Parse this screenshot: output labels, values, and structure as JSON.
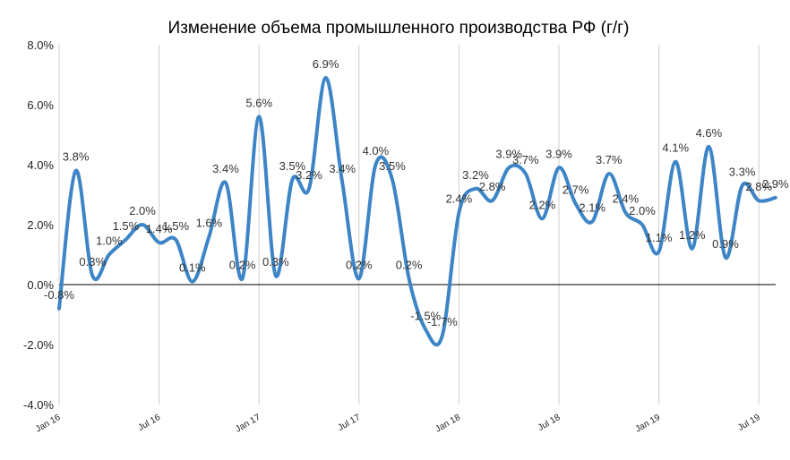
{
  "chart_data": {
    "type": "line",
    "title": "Изменение объема промышленного производства РФ (г/г)",
    "xlabel": "",
    "ylabel": "",
    "ylim": [
      -4,
      8
    ],
    "y_ticks": [
      "-4.0%",
      "-2.0%",
      "0.0%",
      "2.0%",
      "4.0%",
      "6.0%",
      "8.0%"
    ],
    "x_ticks": [
      "Jan 16",
      "Jul 16",
      "Jan 17",
      "Jul 17",
      "Jan 18",
      "Jul 18",
      "Jan 19",
      "Jul 19"
    ],
    "grid": {
      "vertical": true,
      "horizontal": false
    },
    "legend": "none",
    "colors": {
      "line": "#3d85c6",
      "grid": "#cccccc",
      "zero_line": "#000000"
    },
    "series": [
      {
        "x": [
          "2016-01",
          "2016-02",
          "2016-03",
          "2016-04",
          "2016-05",
          "2016-06",
          "2016-07",
          "2016-08",
          "2016-09",
          "2016-10",
          "2016-11",
          "2016-12",
          "2017-01",
          "2017-02",
          "2017-03",
          "2017-04",
          "2017-05",
          "2017-06",
          "2017-07",
          "2017-08",
          "2017-09",
          "2017-10",
          "2017-11",
          "2017-12",
          "2018-01",
          "2018-02",
          "2018-03",
          "2018-04",
          "2018-05",
          "2018-06",
          "2018-07",
          "2018-08",
          "2018-09",
          "2018-10",
          "2018-11",
          "2018-12",
          "2019-01",
          "2019-02",
          "2019-03",
          "2019-04",
          "2019-05",
          "2019-06",
          "2019-07",
          "2019-08"
        ],
        "values": [
          -0.8,
          3.8,
          0.3,
          1.0,
          1.5,
          2.0,
          1.4,
          1.5,
          0.1,
          1.6,
          3.4,
          0.2,
          5.6,
          0.3,
          3.5,
          3.2,
          6.9,
          3.4,
          0.2,
          4.0,
          3.5,
          0.2,
          -1.5,
          -1.7,
          2.4,
          3.2,
          2.8,
          3.9,
          3.7,
          2.2,
          3.9,
          2.7,
          2.1,
          3.7,
          2.4,
          2.0,
          1.1,
          4.1,
          1.2,
          4.6,
          0.9,
          3.3,
          2.8,
          2.9
        ],
        "labels": [
          "-0.8%",
          "3.8%",
          "0.3%",
          "1.0%",
          "1.5%",
          "2.0%",
          "1.4%",
          "1.5%",
          "0.1%",
          "1.6%",
          "3.4%",
          "0.2%",
          "5.6%",
          "0.3%",
          "3.5%",
          "3.2%",
          "6.9%",
          "3.4%",
          "0.2%",
          "4.0%",
          "3.5%",
          "0.2%",
          "-1.5%",
          "-1.7%",
          "2.4%",
          "3.2%",
          "2.8%",
          "3.9%",
          "3.7%",
          "2.2%",
          "3.9%",
          "2.7%",
          "2.1%",
          "3.7%",
          "2.4%",
          "2.0%",
          "1.1%",
          "4.1%",
          "1.2%",
          "4.6%",
          "0.9%",
          "3.3%",
          "2.8%",
          "2.9%"
        ]
      }
    ]
  }
}
